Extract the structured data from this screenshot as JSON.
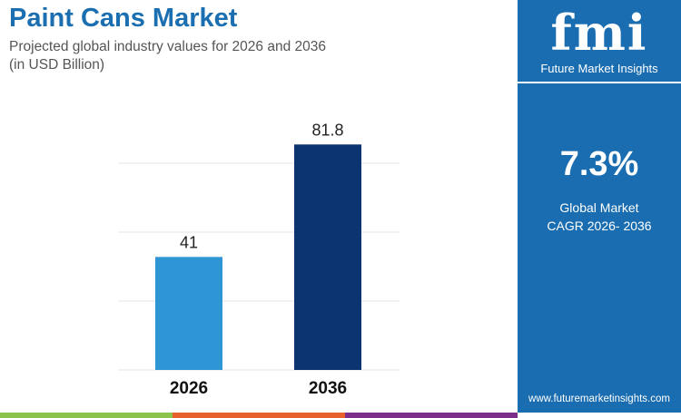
{
  "header": {
    "title": "Paint Cans Market",
    "subtitle_line1": "Projected global industry values for 2026 and 2036",
    "subtitle_line2": "(in USD Billion)"
  },
  "panel": {
    "logo_text": "fmi",
    "brand": "Future Market Insights",
    "cagr_value": "7.3%",
    "cagr_label_line1": "Global Market",
    "cagr_label_line2": "CAGR 2026- 2036",
    "url": "www.futuremarketinsights.com"
  },
  "colors": {
    "panel": "#1a6db0",
    "bar_2026": "#2f96d6",
    "bar_2036": "#0b3470",
    "strip": [
      "#8cc34a",
      "#e8612c",
      "#7b2f8a"
    ]
  },
  "chart_data": {
    "type": "bar",
    "categories": [
      "2026",
      "2036"
    ],
    "values": [
      41,
      81.8
    ],
    "data_labels": [
      "41",
      "81.8"
    ],
    "title": "Paint Cans Market",
    "ylim": [
      0,
      100
    ],
    "grid": true,
    "gridlines": [
      0,
      25,
      50,
      75
    ],
    "yaxis_ticks_shown": false
  }
}
